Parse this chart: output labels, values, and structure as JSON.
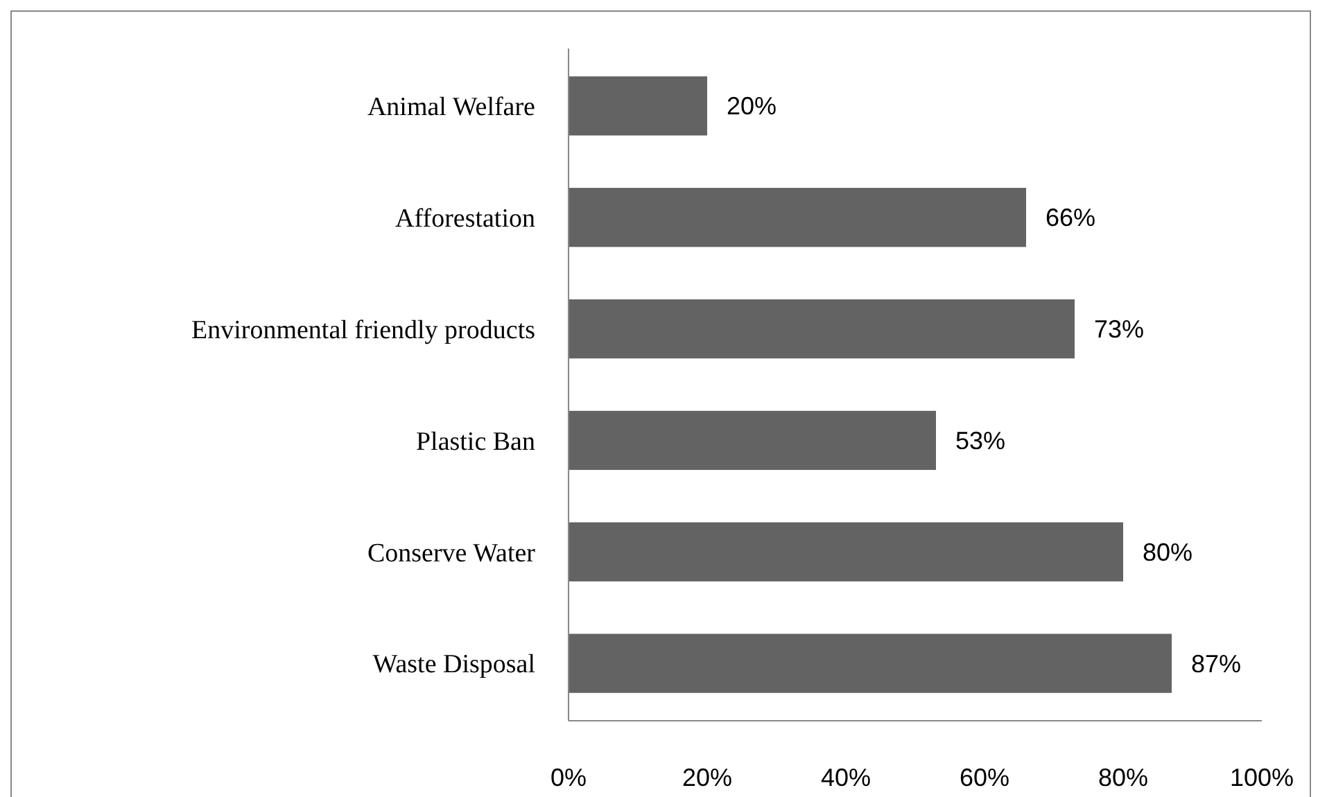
{
  "chart_data": {
    "type": "bar",
    "orientation": "horizontal",
    "categories": [
      "Animal Welfare",
      "Afforestation",
      "Environmental friendly products",
      "Plastic Ban",
      "Conserve Water",
      "Waste Disposal"
    ],
    "values": [
      20,
      66,
      73,
      53,
      80,
      87
    ],
    "value_labels": [
      "20%",
      "66%",
      "73%",
      "53%",
      "80%",
      "87%"
    ],
    "color": "#636363",
    "xlim": [
      0,
      100
    ],
    "xticks": [
      {
        "value": 0,
        "label": "0%"
      },
      {
        "value": 20,
        "label": "20%"
      },
      {
        "value": 40,
        "label": "40%"
      },
      {
        "value": 60,
        "label": "60%"
      },
      {
        "value": 80,
        "label": "80%"
      },
      {
        "value": 100,
        "label": "100%"
      }
    ],
    "grid": false
  }
}
